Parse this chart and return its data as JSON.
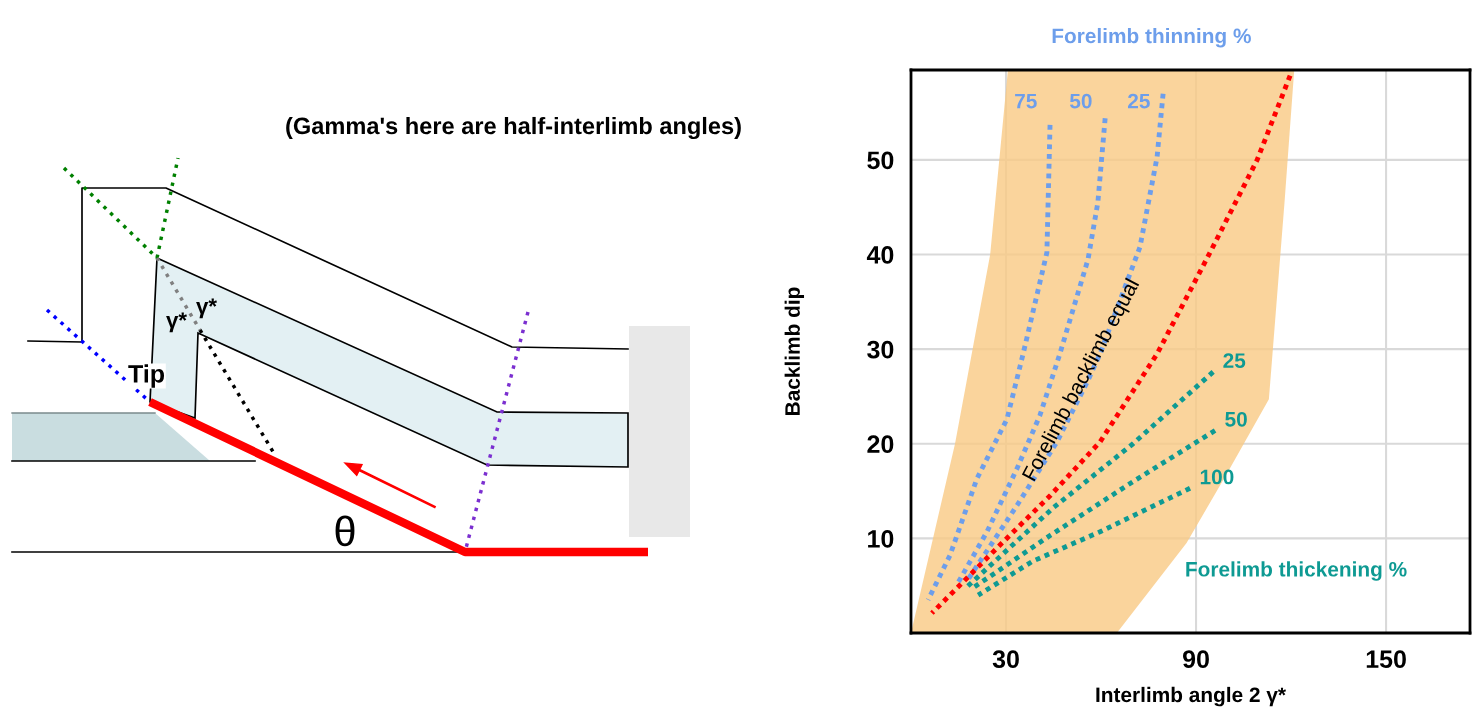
{
  "chart_data": {
    "type": "line",
    "xlabel": "Interlimb angle 2 γ*",
    "ylabel": "Backlimb dip",
    "xlim": [
      0,
      176.5
    ],
    "ylim": [
      0,
      59.5
    ],
    "xticks": [
      30,
      90,
      150
    ],
    "yticks": [
      10,
      20,
      30,
      40,
      50
    ],
    "grid": true,
    "legend": false,
    "line_style": "dotted",
    "series": [
      {
        "color": "#f9c983",
        "x": [
          0,
          13.9,
          25,
          30.6,
          65,
          87,
          100,
          113,
          118,
          121
        ],
        "values": [
          null,
          null,
          null,
          null,
          null,
          null,
          null,
          null,
          null,
          null
        ],
        "upper": [
          0,
          20,
          40,
          59.5,
          59.5,
          59.5,
          59.5,
          59.5,
          59.5,
          59.5
        ],
        "lower": [
          0,
          0,
          0,
          0,
          0,
          9.5,
          17,
          24.7,
          45.8,
          59.5
        ]
      },
      {
        "name": "75",
        "color": "#6d9eeb",
        "x": [
          5.4,
          12.3,
          20.8,
          30.3,
          35.4,
          42.9,
          43.9
        ],
        "values": [
          3.5,
          8.2,
          16.3,
          22.6,
          29.5,
          40.2,
          53.7
        ]
      },
      {
        "name": "50",
        "color": "#6d9eeb",
        "x": [
          14.5,
          24.0,
          33.5,
          40.7,
          47.0,
          55.9,
          59.0,
          61.3
        ],
        "values": [
          5.1,
          10.7,
          17.4,
          23.0,
          29.5,
          39.5,
          45.5,
          54.4
        ]
      },
      {
        "name": "25",
        "color": "#6d9eeb",
        "x": [
          17.7,
          33.5,
          46.1,
          55.6,
          59.7,
          72.3,
          77.7,
          79.6
        ],
        "values": [
          5.5,
          13.5,
          20.2,
          26.5,
          29.5,
          40.8,
          50.3,
          57.0
        ]
      },
      {
        "name": "Forelimb backlimb equal",
        "color": "#ff0000",
        "x": [
          6.6,
          28.1,
          43.9,
          59.7,
          77.7,
          94.4,
          109.3,
          119.7
        ],
        "values": [
          2.1,
          9.3,
          14.5,
          20.2,
          29.5,
          40.2,
          50.0,
          58.9
        ]
      },
      {
        "name": "25",
        "color": "#0e9a93",
        "x": [
          17.1,
          44.8,
          70.1,
          95.4
        ],
        "values": [
          4.7,
          13.2,
          20.0,
          27.6
        ]
      },
      {
        "name": "50",
        "color": "#0e9a93",
        "x": [
          19.3,
          43.9,
          70.1,
          96.0
        ],
        "values": [
          4.7,
          10.3,
          16.0,
          21.4
        ]
      },
      {
        "name": "100",
        "color": "#0e9a93",
        "x": [
          21.2,
          38.5,
          59.7,
          88.1
        ],
        "values": [
          4.0,
          7.6,
          10.7,
          15.3
        ]
      }
    ],
    "annotations": [
      "Forelimb thinning %",
      "Forelimb thickening %",
      "(Gamma's here are half-interlimb angles)",
      "Tip",
      "γ*",
      "γ*",
      "θ"
    ]
  }
}
